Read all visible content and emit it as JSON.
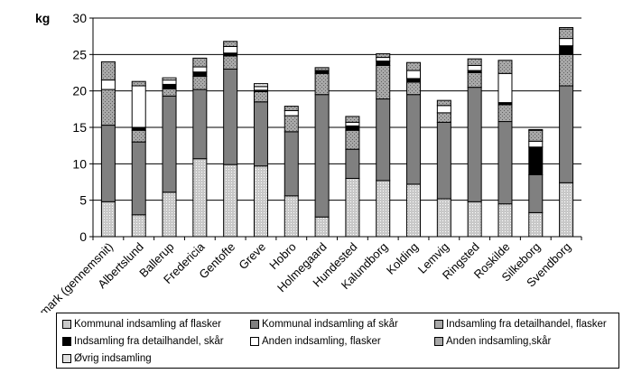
{
  "chart_data": {
    "type": "bar",
    "stacked": true,
    "title": "",
    "ylabel": "kg",
    "xlabel": "",
    "ylim": [
      0,
      30
    ],
    "yticks": [
      0,
      5,
      10,
      15,
      20,
      25,
      30
    ],
    "grid": true,
    "legend_position": "bottom",
    "categories": [
      "Danmark (gennemsnit)",
      "Albertslund",
      "Ballerup",
      "Fredericia",
      "Gentofte",
      "Greve",
      "Hobro",
      "Holmegaard",
      "Hundested",
      "Kalundborg",
      "Kolding",
      "Lemvig",
      "Ringsted",
      "Roskilde",
      "Silkeborg",
      "Svendborg"
    ],
    "series": [
      {
        "name": "Kommunal indsamling af flasker",
        "color": "#c0c0c0",
        "values": [
          4.8,
          3.0,
          6.1,
          10.7,
          9.9,
          9.7,
          5.6,
          2.7,
          8.0,
          7.7,
          7.2,
          5.2,
          4.8,
          4.5,
          3.3,
          7.4
        ]
      },
      {
        "name": "Kommunal indsamling af skår",
        "color": "#808080",
        "values": [
          10.5,
          10.0,
          13.2,
          9.5,
          13.1,
          8.8,
          8.8,
          16.8,
          4.0,
          11.2,
          12.3,
          10.5,
          15.7,
          11.3,
          5.2,
          13.3
        ]
      },
      {
        "name": "Indsamling fra detailhandel, flasker",
        "color": "#c0c0c0",
        "values": [
          4.9,
          1.6,
          1.0,
          1.8,
          1.8,
          1.4,
          2.2,
          2.9,
          2.6,
          4.6,
          1.7,
          1.3,
          2.0,
          2.3,
          0,
          4.3
        ]
      },
      {
        "name": "Indsamling fra detailhandel, skår",
        "color": "#000000",
        "values": [
          0,
          0.4,
          0.6,
          0.6,
          0.4,
          0.2,
          0,
          0.4,
          0.6,
          0.6,
          0.5,
          0,
          0.3,
          0.3,
          3.8,
          1.2
        ]
      },
      {
        "name": "Anden indsamling, flasker",
        "color": "#ffffff",
        "values": [
          1.3,
          5.7,
          0.6,
          0.7,
          0.9,
          0.5,
          0.7,
          0,
          0.5,
          0.5,
          1.1,
          1.0,
          0.7,
          4.0,
          0.8,
          1.0
        ]
      },
      {
        "name": "Anden indsamling,skår",
        "color": "#c0c0c0",
        "values": [
          2.5,
          0.6,
          0,
          1.2,
          0.7,
          0,
          0.6,
          0.4,
          0.8,
          0.5,
          1.1,
          0.7,
          0.9,
          1.8,
          1.5,
          1.3
        ]
      },
      {
        "name": "Øvrig indsamling",
        "color": "#c0c0c0",
        "values": [
          0,
          0,
          0.3,
          0,
          0,
          0.4,
          0,
          0,
          0,
          0,
          0,
          0,
          0,
          0,
          0.1,
          0.2
        ]
      }
    ]
  }
}
